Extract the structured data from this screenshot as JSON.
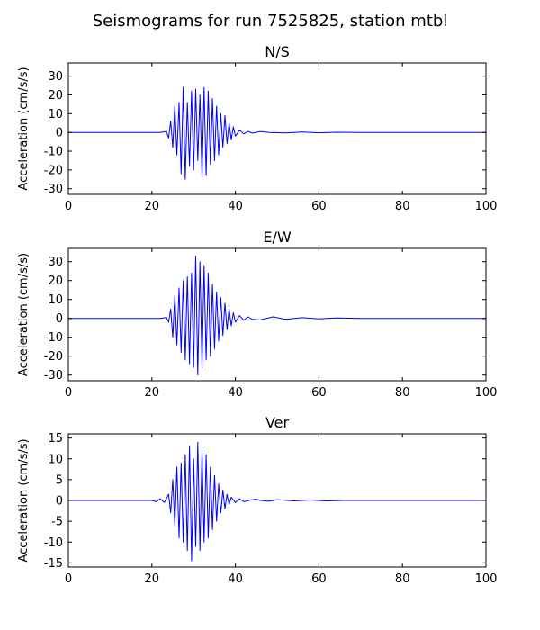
{
  "figure": {
    "title": "Seismograms for run 7525825, station mtbl"
  },
  "chart_data": [
    {
      "type": "line",
      "title": "N/S",
      "xlabel": "",
      "ylabel": "Acceleration (cm/s/s)",
      "xlim": [
        0,
        100
      ],
      "ylim": [
        -33,
        37
      ],
      "xticks": [
        0,
        20,
        40,
        60,
        80,
        100
      ],
      "yticks": [
        -30,
        -20,
        -10,
        0,
        10,
        20,
        30
      ],
      "grid": false,
      "color": "#0000ff",
      "series": [
        {
          "x": [
            0,
            22,
            23.5,
            24,
            24.5,
            25,
            25.5,
            26,
            26.5,
            27,
            27.5,
            28,
            28.5,
            29,
            29.5,
            30,
            30.5,
            31,
            31.5,
            32,
            32.5,
            33,
            33.5,
            34,
            34.5,
            35,
            35.5,
            36,
            36.5,
            37,
            37.5,
            38,
            38.5,
            39,
            39.5,
            40,
            41,
            42,
            43,
            44,
            46,
            48,
            52,
            56,
            60,
            64,
            70,
            80,
            90,
            100
          ],
          "y": [
            0,
            0,
            0.5,
            -3,
            6,
            -8,
            14,
            -12,
            16,
            -22,
            24,
            -25,
            16,
            -18,
            22,
            -20,
            23,
            -15,
            20,
            -24,
            24,
            -23,
            22,
            -17,
            18,
            -15,
            14,
            -12,
            10,
            -8,
            9,
            -6,
            5,
            -4,
            3,
            -2,
            1.2,
            -0.8,
            0.6,
            -0.4,
            0.5,
            0,
            -0.3,
            0.2,
            -0.2,
            0.1,
            0,
            0,
            0,
            0
          ]
        }
      ]
    },
    {
      "type": "line",
      "title": "E/W",
      "xlabel": "",
      "ylabel": "Acceleration (cm/s/s)",
      "xlim": [
        0,
        100
      ],
      "ylim": [
        -33,
        37
      ],
      "xticks": [
        0,
        20,
        40,
        60,
        80,
        100
      ],
      "yticks": [
        -30,
        -20,
        -10,
        0,
        10,
        20,
        30
      ],
      "grid": false,
      "color": "#0000ff",
      "series": [
        {
          "x": [
            0,
            22,
            23.5,
            24,
            24.5,
            25,
            25.5,
            26,
            26.5,
            27,
            27.5,
            28,
            28.5,
            29,
            29.5,
            30,
            30.5,
            31,
            31.5,
            32,
            32.5,
            33,
            33.5,
            34,
            34.5,
            35,
            35.5,
            36,
            36.5,
            37,
            37.5,
            38,
            38.5,
            39,
            39.5,
            40,
            41,
            42,
            43,
            44,
            46,
            49,
            52,
            56,
            60,
            64,
            70,
            80,
            90,
            100
          ],
          "y": [
            0,
            0,
            0.5,
            -2,
            5,
            -10,
            12,
            -14,
            16,
            -18,
            20,
            -22,
            22,
            -24,
            24,
            -26,
            33,
            -30,
            30,
            -26,
            28,
            -22,
            24,
            -20,
            18,
            -16,
            14,
            -12,
            11,
            -9,
            8,
            -6,
            5,
            -4,
            3,
            -2,
            1.5,
            -1,
            0.8,
            -0.5,
            -0.8,
            0.8,
            -0.5,
            0.4,
            -0.3,
            0.2,
            0,
            0,
            0,
            0
          ]
        }
      ]
    },
    {
      "type": "line",
      "title": "Ver",
      "xlabel": "",
      "ylabel": "Acceleration (cm/s/s)",
      "xlim": [
        0,
        100
      ],
      "ylim": [
        -16,
        16
      ],
      "xticks": [
        0,
        20,
        40,
        60,
        80,
        100
      ],
      "yticks": [
        -15,
        -10,
        -5,
        0,
        5,
        10,
        15
      ],
      "grid": false,
      "color": "#0000ff",
      "series": [
        {
          "x": [
            0,
            20,
            21,
            22,
            23,
            24,
            24.5,
            25,
            25.5,
            26,
            26.5,
            27,
            27.5,
            28,
            28.5,
            29,
            29.5,
            30,
            30.5,
            31,
            31.5,
            32,
            32.5,
            33,
            33.5,
            34,
            34.5,
            35,
            35.5,
            36,
            36.5,
            37,
            37.5,
            38,
            38.5,
            39,
            40,
            41,
            42,
            44,
            45,
            46,
            48,
            50,
            54,
            58,
            62,
            66,
            70,
            80,
            90,
            100
          ],
          "y": [
            0,
            0,
            -0.3,
            0.4,
            -0.5,
            1.5,
            -3,
            5,
            -6,
            8,
            -9,
            9,
            -10,
            11,
            -12,
            13,
            -14.5,
            10,
            -11,
            14,
            -12,
            12,
            -10,
            11,
            -9,
            8,
            -7,
            6,
            -5,
            4,
            -3,
            2.5,
            -2,
            1.5,
            -1,
            0.8,
            -0.5,
            0.4,
            -0.3,
            0.2,
            0.3,
            0,
            -0.2,
            0.2,
            -0.1,
            0.1,
            -0.1,
            0,
            0,
            0,
            0,
            0
          ]
        }
      ]
    }
  ]
}
